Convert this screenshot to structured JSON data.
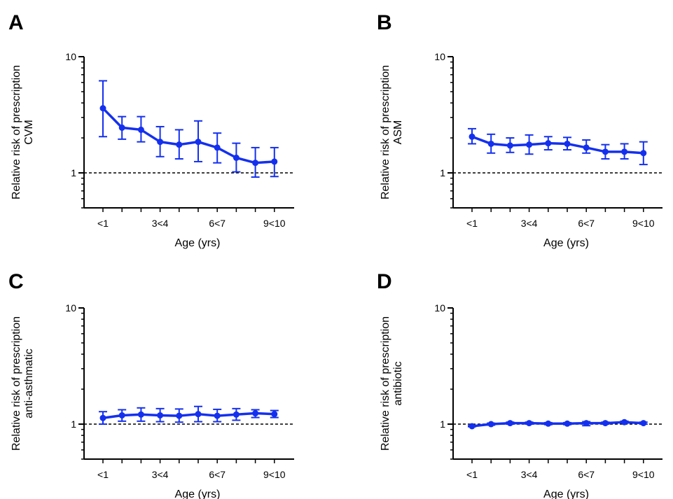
{
  "chart_data": [
    {
      "type": "line",
      "panel": "A",
      "xlabel": "Age (yrs)",
      "ylabel": [
        "Relative risk of prescription",
        "CVM"
      ],
      "yscale": "log",
      "ylim": [
        0.5,
        10
      ],
      "yticks": [
        1,
        10
      ],
      "reference_line": 1,
      "categories": [
        "<1",
        "1<2",
        "2<3",
        "3<4",
        "4<5",
        "5<6",
        "6<7",
        "7<8",
        "8<9",
        "9<10"
      ],
      "tick_labels": [
        "<1",
        "3<4",
        "6<7",
        "9<10"
      ],
      "tick_index": [
        0,
        3,
        6,
        9
      ],
      "values": [
        3.6,
        2.45,
        2.35,
        1.85,
        1.75,
        1.85,
        1.65,
        1.35,
        1.22,
        1.25
      ],
      "lower": [
        2.05,
        1.95,
        1.85,
        1.38,
        1.32,
        1.25,
        1.22,
        1.02,
        0.92,
        0.93
      ],
      "upper": [
        6.2,
        3.05,
        3.05,
        2.5,
        2.35,
        2.8,
        2.2,
        1.8,
        1.65,
        1.65
      ],
      "color": "#1430ee"
    },
    {
      "type": "line",
      "panel": "B",
      "xlabel": "Age (yrs)",
      "ylabel": [
        "Relative risk of prescription",
        "ASM"
      ],
      "yscale": "log",
      "ylim": [
        0.5,
        10
      ],
      "yticks": [
        1,
        10
      ],
      "reference_line": 1,
      "categories": [
        "<1",
        "1<2",
        "2<3",
        "3<4",
        "4<5",
        "5<6",
        "6<7",
        "7<8",
        "8<9",
        "9<10"
      ],
      "tick_labels": [
        "<1",
        "3<4",
        "6<7",
        "9<10"
      ],
      "tick_index": [
        0,
        3,
        6,
        9
      ],
      "values": [
        2.05,
        1.78,
        1.72,
        1.75,
        1.8,
        1.78,
        1.65,
        1.52,
        1.52,
        1.48
      ],
      "lower": [
        1.78,
        1.48,
        1.5,
        1.45,
        1.58,
        1.58,
        1.48,
        1.32,
        1.32,
        1.18
      ],
      "upper": [
        2.4,
        2.15,
        2.0,
        2.12,
        2.05,
        2.02,
        1.92,
        1.75,
        1.78,
        1.85
      ],
      "color": "#1430ee"
    },
    {
      "type": "line",
      "panel": "C",
      "xlabel": "Age (yrs)",
      "ylabel": [
        "Relative risk of prescription",
        "anti-asthmatic"
      ],
      "yscale": "log",
      "ylim": [
        0.5,
        10
      ],
      "yticks": [
        1,
        10
      ],
      "reference_line": 1,
      "categories": [
        "<1",
        "1<2",
        "2<3",
        "3<4",
        "4<5",
        "5<6",
        "6<7",
        "7<8",
        "8<9",
        "9<10"
      ],
      "tick_labels": [
        "<1",
        "3<4",
        "6<7",
        "9<10"
      ],
      "tick_index": [
        0,
        3,
        6,
        9
      ],
      "values": [
        1.13,
        1.19,
        1.21,
        1.19,
        1.18,
        1.22,
        1.18,
        1.21,
        1.24,
        1.22
      ],
      "lower": [
        1.0,
        1.06,
        1.06,
        1.05,
        1.04,
        1.05,
        1.05,
        1.08,
        1.14,
        1.14
      ],
      "upper": [
        1.28,
        1.33,
        1.38,
        1.36,
        1.35,
        1.42,
        1.34,
        1.36,
        1.33,
        1.31
      ],
      "color": "#1430ee"
    },
    {
      "type": "line",
      "panel": "D",
      "xlabel": "Age (yrs)",
      "ylabel": [
        "Relative risk of prescription",
        "antibiotic"
      ],
      "yscale": "log",
      "ylim": [
        0.5,
        10
      ],
      "yticks": [
        1,
        10
      ],
      "reference_line": 1,
      "categories": [
        "<1",
        "1<2",
        "2<3",
        "3<4",
        "4<5",
        "5<6",
        "6<7",
        "7<8",
        "8<9",
        "9<10"
      ],
      "tick_labels": [
        "<1",
        "3<4",
        "6<7",
        "9<10"
      ],
      "tick_index": [
        0,
        3,
        6,
        9
      ],
      "values": [
        0.96,
        1.0,
        1.02,
        1.02,
        1.01,
        1.01,
        1.02,
        1.02,
        1.04,
        1.02
      ],
      "lower": [
        0.95,
        0.98,
        1.0,
        1.0,
        0.99,
        0.99,
        0.97,
        1.0,
        1.02,
        1.0
      ],
      "upper": [
        0.97,
        1.02,
        1.04,
        1.04,
        1.03,
        1.03,
        1.05,
        1.04,
        1.06,
        1.04
      ],
      "color": "#1430ee"
    }
  ]
}
